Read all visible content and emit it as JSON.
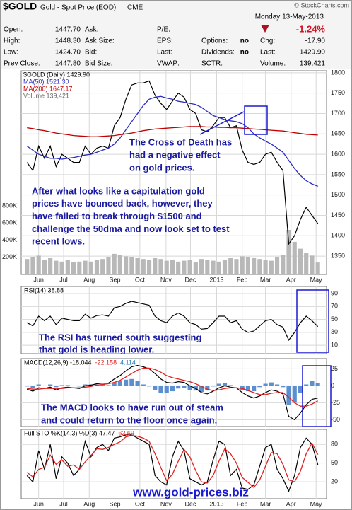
{
  "header": {
    "symbol": "$GOLD",
    "name": "Gold - Spot Price (EOD)",
    "exchange": "CME",
    "watermark": "© StockCharts.com",
    "date": "Monday 13-May-2013",
    "change_pct": "-1.24%",
    "quote": {
      "open": {
        "label": "Open:",
        "value": "1447.70"
      },
      "high": {
        "label": "High:",
        "value": "1448.30"
      },
      "low": {
        "label": "Low:",
        "value": "1424.70"
      },
      "prev_close": {
        "label": "Prev Close:",
        "value": "1447.80"
      },
      "ask": {
        "label": "Ask:"
      },
      "ask_size": {
        "label": "Ask Size:"
      },
      "bid": {
        "label": "Bid:"
      },
      "bid_size": {
        "label": "Bid Size:"
      },
      "pe": {
        "label": "P/E:"
      },
      "eps": {
        "label": "EPS:"
      },
      "last": {
        "label": "Last:"
      },
      "vwap": {
        "label": "VWAP:"
      },
      "options": {
        "label": "Options:",
        "value": "no"
      },
      "dividends": {
        "label": "Dividends:",
        "value": "no"
      },
      "sctr": {
        "label": "SCTR:"
      },
      "chg": {
        "label": "Chg:",
        "value": "-17.90"
      },
      "last_price": {
        "label": "Last:",
        "value": "1429.90"
      },
      "volume": {
        "label": "Volume:",
        "value": "139,421"
      }
    }
  },
  "footer": "www.gold-prices.biz",
  "chart_data": [
    {
      "type": "line",
      "xlim": [
        -1,
        51.5
      ],
      "xticks": [
        {
          "value": 2,
          "label": "Jun"
        },
        {
          "value": 6.3,
          "label": "Jul"
        },
        {
          "value": 10.7,
          "label": "Aug"
        },
        {
          "value": 15.1,
          "label": "Sep"
        },
        {
          "value": 19.4,
          "label": "Oct"
        },
        {
          "value": 23.9,
          "label": "Nov"
        },
        {
          "value": 28.1,
          "label": "Dec"
        },
        {
          "value": 32.6,
          "label": "2013"
        },
        {
          "value": 37,
          "label": "Feb"
        },
        {
          "value": 41,
          "label": "Mar"
        },
        {
          "value": 45.4,
          "label": "Apr"
        },
        {
          "value": 49.7,
          "label": "May"
        }
      ],
      "ylim": [
        1305,
        1805
      ],
      "yticks": [
        1350,
        1400,
        1450,
        1500,
        1550,
        1600,
        1650,
        1700,
        1750,
        1800
      ],
      "y2lim": [
        0,
        2375000
      ],
      "y2ticks": [
        {
          "value": 200000,
          "label": "200K"
        },
        {
          "value": 400000,
          "label": "400K"
        },
        {
          "value": 600000,
          "label": "600K"
        },
        {
          "value": 800000,
          "label": "800K"
        }
      ],
      "grid": true,
      "series": [
        {
          "name": "$GOLD (Daily) 1429.90",
          "color": "#000000",
          "values": [
            1580,
            1560,
            1620,
            1590,
            1620,
            1570,
            1600,
            1590,
            1580,
            1580,
            1620,
            1600,
            1615,
            1620,
            1615,
            1670,
            1690,
            1735,
            1770,
            1775,
            1775,
            1780,
            1745,
            1725,
            1710,
            1730,
            1750,
            1740,
            1710,
            1700,
            1660,
            1655,
            1670,
            1690,
            1690,
            1665,
            1670,
            1610,
            1580,
            1575,
            1580,
            1600,
            1605,
            1580,
            1560,
            1380,
            1400,
            1440,
            1470,
            1450,
            1429.9
          ]
        },
        {
          "name": "MA(50) 1521.30",
          "color": "#2b2bc0",
          "values": [
            1620,
            1610,
            1600,
            1595,
            1590,
            1590,
            1588,
            1590,
            1592,
            1595,
            1598,
            1600,
            1605,
            1610,
            1615,
            1625,
            1640,
            1660,
            1680,
            1700,
            1720,
            1735,
            1740,
            1742,
            1738,
            1735,
            1730,
            1728,
            1725,
            1722,
            1715,
            1705,
            1695,
            1690,
            1685,
            1682,
            1680,
            1675,
            1665,
            1650,
            1640,
            1632,
            1625,
            1615,
            1605,
            1585,
            1565,
            1548,
            1535,
            1527,
            1521.3
          ]
        },
        {
          "name": "MA(200) 1647.17",
          "color": "#c00000",
          "values": [
            1665,
            1663,
            1660,
            1658,
            1655,
            1652,
            1650,
            1648,
            1646,
            1645,
            1644,
            1643,
            1643,
            1644,
            1645,
            1646,
            1648,
            1650,
            1652,
            1655,
            1658,
            1660,
            1662,
            1663,
            1664,
            1665,
            1666,
            1667,
            1668,
            1668,
            1668,
            1667,
            1667,
            1666,
            1666,
            1665,
            1665,
            1664,
            1663,
            1662,
            1661,
            1660,
            1659,
            1658,
            1657,
            1655,
            1653,
            1651,
            1649,
            1648,
            1647.17
          ]
        },
        {
          "name": "Volume 139,421",
          "type": "bar",
          "axis": "y2",
          "color": "#b8b8b8",
          "values": [
            180000,
            200000,
            220000,
            170000,
            190000,
            160000,
            150000,
            170000,
            140000,
            150000,
            160000,
            150000,
            170000,
            180000,
            200000,
            240000,
            230000,
            210000,
            200000,
            190000,
            180000,
            170000,
            190000,
            180000,
            160000,
            170000,
            150000,
            160000,
            170000,
            140000,
            180000,
            170000,
            160000,
            150000,
            170000,
            190000,
            180000,
            210000,
            200000,
            190000,
            180000,
            170000,
            160000,
            200000,
            230000,
            520000,
            380000,
            300000,
            250000,
            220000,
            139421
          ]
        }
      ],
      "annotations": [
        {
          "lines": [
            "The Cross of Death has",
            "had a negative effect",
            "on gold prices."
          ]
        },
        {
          "lines": [
            "After what looks like a capitulation gold",
            "prices have bounced back, however, they",
            "have failed to break through $1500 and",
            "challenge the 50dma and now look set to test",
            "recent lows."
          ]
        }
      ]
    },
    {
      "type": "line",
      "ylim": [
        -3,
        101
      ],
      "yticks": [
        10,
        30,
        50,
        70,
        90
      ],
      "grid": true,
      "series": [
        {
          "name": "RSI(14) 38.88",
          "color": "#000000",
          "values": [
            45,
            40,
            55,
            48,
            55,
            42,
            52,
            50,
            48,
            48,
            58,
            52,
            56,
            57,
            55,
            68,
            70,
            75,
            78,
            76,
            74,
            72,
            55,
            48,
            45,
            55,
            60,
            55,
            45,
            42,
            35,
            36,
            45,
            55,
            55,
            45,
            48,
            35,
            30,
            32,
            40,
            48,
            50,
            42,
            38,
            18,
            30,
            45,
            55,
            48,
            38.88
          ]
        }
      ],
      "annotations": [
        {
          "lines": [
            "The RSI has turned south suggesting",
            "that gold is heading lower."
          ]
        }
      ]
    },
    {
      "type": "line",
      "ylim": [
        -60,
        40
      ],
      "yticks": [
        -50,
        -25,
        0,
        25
      ],
      "grid": true,
      "series": [
        {
          "name": "MACD(12,26,9) -18.044",
          "color": "#000000",
          "values": [
            -5,
            -8,
            -3,
            -4,
            -2,
            -6,
            -3,
            -2,
            -3,
            -4,
            0,
            1,
            3,
            4,
            4,
            10,
            15,
            22,
            28,
            30,
            28,
            25,
            18,
            10,
            5,
            4,
            6,
            5,
            0,
            -4,
            -10,
            -12,
            -8,
            -3,
            0,
            -2,
            -3,
            -10,
            -15,
            -18,
            -15,
            -10,
            -6,
            -8,
            -12,
            -45,
            -50,
            -40,
            -28,
            -20,
            -18.044
          ]
        },
        {
          "name": "-22.158",
          "color": "#e02020",
          "values": [
            -4,
            -5,
            -5,
            -4,
            -4,
            -4,
            -4,
            -3,
            -3,
            -3,
            -2,
            -1,
            1,
            2,
            3,
            5,
            8,
            13,
            18,
            23,
            26,
            26,
            24,
            20,
            15,
            12,
            10,
            8,
            6,
            3,
            -1,
            -5,
            -7,
            -6,
            -4,
            -3,
            -3,
            -4,
            -7,
            -10,
            -13,
            -13,
            -11,
            -10,
            -10,
            -17,
            -25,
            -30,
            -30,
            -27,
            -22.158
          ]
        },
        {
          "name": "4.114",
          "type": "bar",
          "color": "#5b8fd0",
          "values": [
            -1,
            -3,
            2,
            0,
            2,
            -2,
            1,
            1,
            0,
            -1,
            2,
            2,
            2,
            2,
            1,
            5,
            7,
            9,
            10,
            7,
            2,
            -1,
            -6,
            -10,
            -10,
            -8,
            -4,
            -3,
            -6,
            -7,
            -9,
            -7,
            -1,
            3,
            4,
            1,
            0,
            -6,
            -8,
            -8,
            -2,
            3,
            5,
            2,
            -2,
            -28,
            -25,
            -10,
            2,
            7,
            4.114
          ]
        }
      ],
      "annotations": [
        {
          "lines": [
            "The MACD looks to have run out of steam",
            "and could return to the floor once again."
          ]
        }
      ]
    },
    {
      "type": "line",
      "xlim": [
        -1,
        51.5
      ],
      "xticks": [
        {
          "value": 2,
          "label": "Jun"
        },
        {
          "value": 6.3,
          "label": "Jul"
        },
        {
          "value": 10.7,
          "label": "Aug"
        },
        {
          "value": 15.1,
          "label": "Sep"
        },
        {
          "value": 19.4,
          "label": "Oct"
        },
        {
          "value": 23.9,
          "label": "Nov"
        },
        {
          "value": 28.1,
          "label": "Dec"
        },
        {
          "value": 32.6,
          "label": "2013"
        },
        {
          "value": 37,
          "label": "Feb"
        },
        {
          "value": 41,
          "label": "Mar"
        },
        {
          "value": 45.4,
          "label": "Apr"
        },
        {
          "value": 49.7,
          "label": "May"
        }
      ],
      "ylim": [
        -7,
        104
      ],
      "yticks": [
        20,
        50,
        80
      ],
      "grid": true,
      "series": [
        {
          "name": "Full STO %K(14,3) %D(3) 47.47",
          "color": "#000000",
          "values": [
            30,
            20,
            70,
            40,
            80,
            25,
            60,
            50,
            30,
            40,
            85,
            60,
            75,
            80,
            70,
            90,
            92,
            95,
            95,
            90,
            85,
            80,
            30,
            20,
            15,
            60,
            85,
            70,
            25,
            20,
            15,
            20,
            55,
            85,
            80,
            30,
            40,
            10,
            8,
            15,
            45,
            75,
            80,
            40,
            25,
            5,
            30,
            75,
            90,
            80,
            47.47
          ]
        },
        {
          "name": "63.69",
          "color": "#e02020",
          "values": [
            35,
            28,
            40,
            43,
            63,
            48,
            55,
            45,
            47,
            40,
            52,
            62,
            73,
            72,
            75,
            80,
            84,
            92,
            94,
            93,
            90,
            85,
            65,
            43,
            22,
            32,
            53,
            72,
            60,
            38,
            20,
            18,
            30,
            53,
            73,
            65,
            50,
            27,
            19,
            11,
            23,
            45,
            67,
            65,
            48,
            23,
            20,
            37,
            65,
            82,
            63.69
          ]
        }
      ]
    }
  ]
}
